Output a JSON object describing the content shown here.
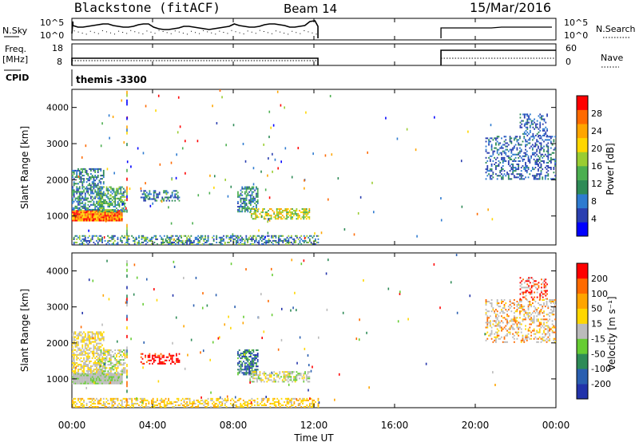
{
  "header": {
    "station": "Blackstone (fitACF)",
    "beam": "Beam 14",
    "date": "15/Mar/2016"
  },
  "chart_data": [
    {
      "type": "line",
      "panel": "noise",
      "left_label": "N.Sky",
      "right_label": "N.Search",
      "left_ticks": [
        "10^5",
        "10^0"
      ],
      "right_ticks": [
        "10^5",
        "10^0"
      ]
    },
    {
      "type": "line",
      "panel": "frequency",
      "left_label_1": "Freq.",
      "left_label_2": "[MHz]",
      "right_label": "Nave",
      "left_ticks": [
        "18",
        "8"
      ],
      "right_ticks": [
        "60",
        "0"
      ]
    },
    {
      "type": "table",
      "panel": "cpid",
      "label": "CPID",
      "value": "themis -3300"
    },
    {
      "type": "heatmap",
      "panel": "power",
      "ylabel": "Slant Range [km]",
      "yticks": [
        "4000",
        "3000",
        "2000",
        "1000"
      ],
      "ylim": [
        200,
        4500
      ],
      "colorbar_label": "Power [dB]",
      "colorbar_ticks": [
        "28",
        "24",
        "20",
        "16",
        "12",
        "8",
        "4"
      ],
      "colors": [
        "#0000ff",
        "#2a3fb0",
        "#2e7bd0",
        "#2e8b57",
        "#4caf50",
        "#9acd32",
        "#ffd700",
        "#ffa500",
        "#ff6a00",
        "#ff0000"
      ]
    },
    {
      "type": "heatmap",
      "panel": "velocity",
      "ylabel": "Slant Range [km]",
      "yticks": [
        "4000",
        "3000",
        "2000",
        "1000"
      ],
      "ylim": [
        200,
        4500
      ],
      "colorbar_label": "Velocity [m s⁻¹]",
      "colorbar_ticks": [
        "200",
        "100",
        "50",
        "15",
        "-15",
        "-50",
        "-100",
        "-200"
      ],
      "colors": [
        "#2233aa",
        "#2a5fb0",
        "#2e8b57",
        "#66cc33",
        "#bbbbbb",
        "#ffd700",
        "#ffa500",
        "#ff6a00",
        "#ff0000"
      ]
    }
  ],
  "xaxis": {
    "label": "Time UT",
    "ticks": [
      "00:00",
      "04:00",
      "08:00",
      "12:00",
      "16:00",
      "20:00",
      "00:00"
    ]
  }
}
